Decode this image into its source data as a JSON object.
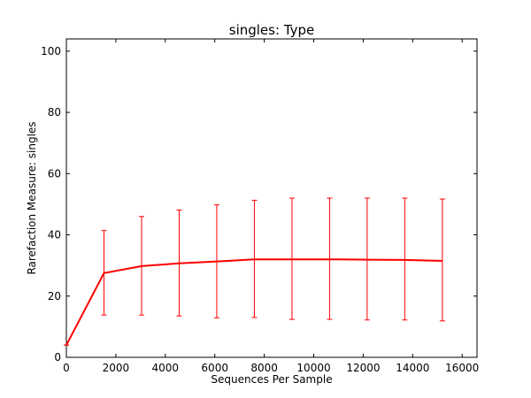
{
  "chart_data": {
    "type": "line",
    "title": "singles: Type",
    "xlabel": "Sequences Per Sample",
    "ylabel": "Rarefaction Measure: singles",
    "xlim": [
      0,
      16600
    ],
    "ylim": [
      0,
      104
    ],
    "xticks": [
      0,
      2000,
      4000,
      6000,
      8000,
      10000,
      12000,
      14000,
      16000
    ],
    "yticks": [
      0,
      20,
      40,
      60,
      80,
      100
    ],
    "grid": false,
    "line_color": "#ff0000",
    "error_color": "#ff0000",
    "series": [
      {
        "x": [
          0,
          1520,
          3040,
          4560,
          6080,
          7600,
          9120,
          10640,
          12160,
          13680,
          15200
        ],
        "y": [
          4,
          27.5,
          29.8,
          30.7,
          31.3,
          32.0,
          32.0,
          32.0,
          31.9,
          31.8,
          31.5
        ],
        "err_low": [
          4,
          13.8,
          13.8,
          13.5,
          12.9,
          13.0,
          12.4,
          12.4,
          12.2,
          12.2,
          11.9
        ],
        "err_high": [
          4,
          41.4,
          46.0,
          48.1,
          49.8,
          51.3,
          52.0,
          52.0,
          52.0,
          52.0,
          51.7
        ]
      }
    ]
  }
}
